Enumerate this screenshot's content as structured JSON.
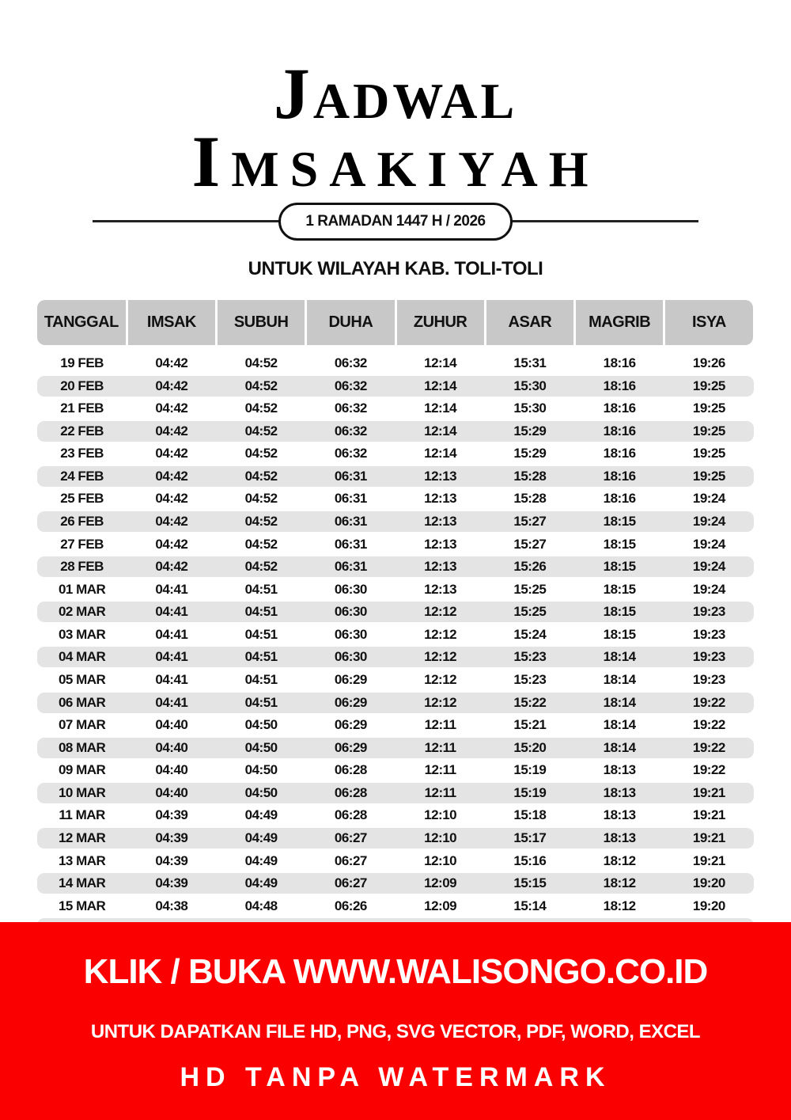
{
  "title": {
    "line1": "Jadwal",
    "line2": "Imsakiyah"
  },
  "subtitle": "1 RAMADAN 1447 H / 2026",
  "region": "UNTUK WILAYAH KAB. TOLI-TOLI",
  "table": {
    "headers": [
      "TANGGAL",
      "IMSAK",
      "SUBUH",
      "DUHA",
      "ZUHUR",
      "ASAR",
      "MAGRIB",
      "ISYA"
    ],
    "rows": [
      [
        "19 FEB",
        "04:42",
        "04:52",
        "06:32",
        "12:14",
        "15:31",
        "18:16",
        "19:26"
      ],
      [
        "20 FEB",
        "04:42",
        "04:52",
        "06:32",
        "12:14",
        "15:30",
        "18:16",
        "19:25"
      ],
      [
        "21 FEB",
        "04:42",
        "04:52",
        "06:32",
        "12:14",
        "15:30",
        "18:16",
        "19:25"
      ],
      [
        "22 FEB",
        "04:42",
        "04:52",
        "06:32",
        "12:14",
        "15:29",
        "18:16",
        "19:25"
      ],
      [
        "23 FEB",
        "04:42",
        "04:52",
        "06:32",
        "12:14",
        "15:29",
        "18:16",
        "19:25"
      ],
      [
        "24 FEB",
        "04:42",
        "04:52",
        "06:31",
        "12:13",
        "15:28",
        "18:16",
        "19:25"
      ],
      [
        "25 FEB",
        "04:42",
        "04:52",
        "06:31",
        "12:13",
        "15:28",
        "18:16",
        "19:24"
      ],
      [
        "26 FEB",
        "04:42",
        "04:52",
        "06:31",
        "12:13",
        "15:27",
        "18:15",
        "19:24"
      ],
      [
        "27 FEB",
        "04:42",
        "04:52",
        "06:31",
        "12:13",
        "15:27",
        "18:15",
        "19:24"
      ],
      [
        "28 FEB",
        "04:42",
        "04:52",
        "06:31",
        "12:13",
        "15:26",
        "18:15",
        "19:24"
      ],
      [
        "01 MAR",
        "04:41",
        "04:51",
        "06:30",
        "12:13",
        "15:25",
        "18:15",
        "19:24"
      ],
      [
        "02 MAR",
        "04:41",
        "04:51",
        "06:30",
        "12:12",
        "15:25",
        "18:15",
        "19:23"
      ],
      [
        "03 MAR",
        "04:41",
        "04:51",
        "06:30",
        "12:12",
        "15:24",
        "18:15",
        "19:23"
      ],
      [
        "04 MAR",
        "04:41",
        "04:51",
        "06:30",
        "12:12",
        "15:23",
        "18:14",
        "19:23"
      ],
      [
        "05 MAR",
        "04:41",
        "04:51",
        "06:29",
        "12:12",
        "15:23",
        "18:14",
        "19:23"
      ],
      [
        "06 MAR",
        "04:41",
        "04:51",
        "06:29",
        "12:12",
        "15:22",
        "18:14",
        "19:22"
      ],
      [
        "07 MAR",
        "04:40",
        "04:50",
        "06:29",
        "12:11",
        "15:21",
        "18:14",
        "19:22"
      ],
      [
        "08 MAR",
        "04:40",
        "04:50",
        "06:29",
        "12:11",
        "15:20",
        "18:14",
        "19:22"
      ],
      [
        "09 MAR",
        "04:40",
        "04:50",
        "06:28",
        "12:11",
        "15:19",
        "18:13",
        "19:22"
      ],
      [
        "10 MAR",
        "04:40",
        "04:50",
        "06:28",
        "12:11",
        "15:19",
        "18:13",
        "19:21"
      ],
      [
        "11 MAR",
        "04:39",
        "04:49",
        "06:28",
        "12:10",
        "15:18",
        "18:13",
        "19:21"
      ],
      [
        "12 MAR",
        "04:39",
        "04:49",
        "06:27",
        "12:10",
        "15:17",
        "18:13",
        "19:21"
      ],
      [
        "13 MAR",
        "04:39",
        "04:49",
        "06:27",
        "12:10",
        "15:16",
        "18:12",
        "19:21"
      ],
      [
        "14 MAR",
        "04:39",
        "04:49",
        "06:27",
        "12:09",
        "15:15",
        "18:12",
        "19:20"
      ],
      [
        "15 MAR",
        "04:38",
        "04:48",
        "06:26",
        "12:09",
        "15:14",
        "18:12",
        "19:20"
      ]
    ]
  },
  "banner": {
    "line1": "KLIK / BUKA WWW.WALISONGO.CO.ID",
    "line2": "UNTUK DAPATKAN FILE HD, PNG, SVG VECTOR, PDF, WORD, EXCEL",
    "line3": "HD TANPA WATERMARK",
    "color": "#fb0000"
  }
}
